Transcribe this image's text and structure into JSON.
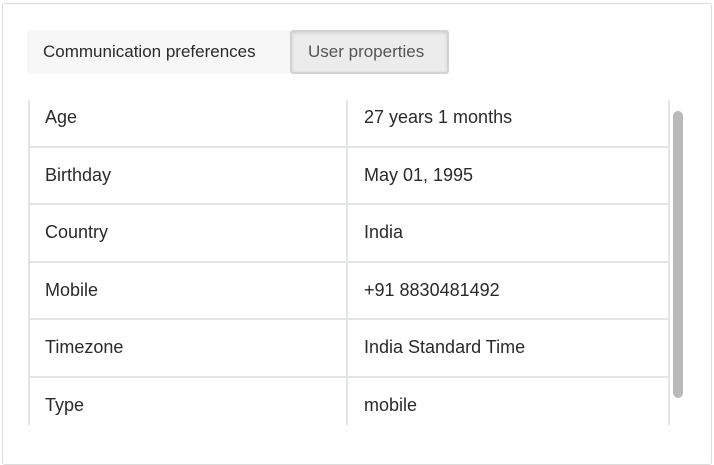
{
  "tabs": [
    {
      "label": "Communication preferences",
      "active": false
    },
    {
      "label": "User properties",
      "active": true
    }
  ],
  "properties": [
    {
      "key": "Age",
      "value": "27 years 1 months"
    },
    {
      "key": "Birthday",
      "value": "May 01, 1995"
    },
    {
      "key": "Country",
      "value": "India"
    },
    {
      "key": "Mobile",
      "value": "+91 8830481492"
    },
    {
      "key": "Timezone",
      "value": "India Standard Time"
    },
    {
      "key": "Type",
      "value": "mobile"
    }
  ]
}
